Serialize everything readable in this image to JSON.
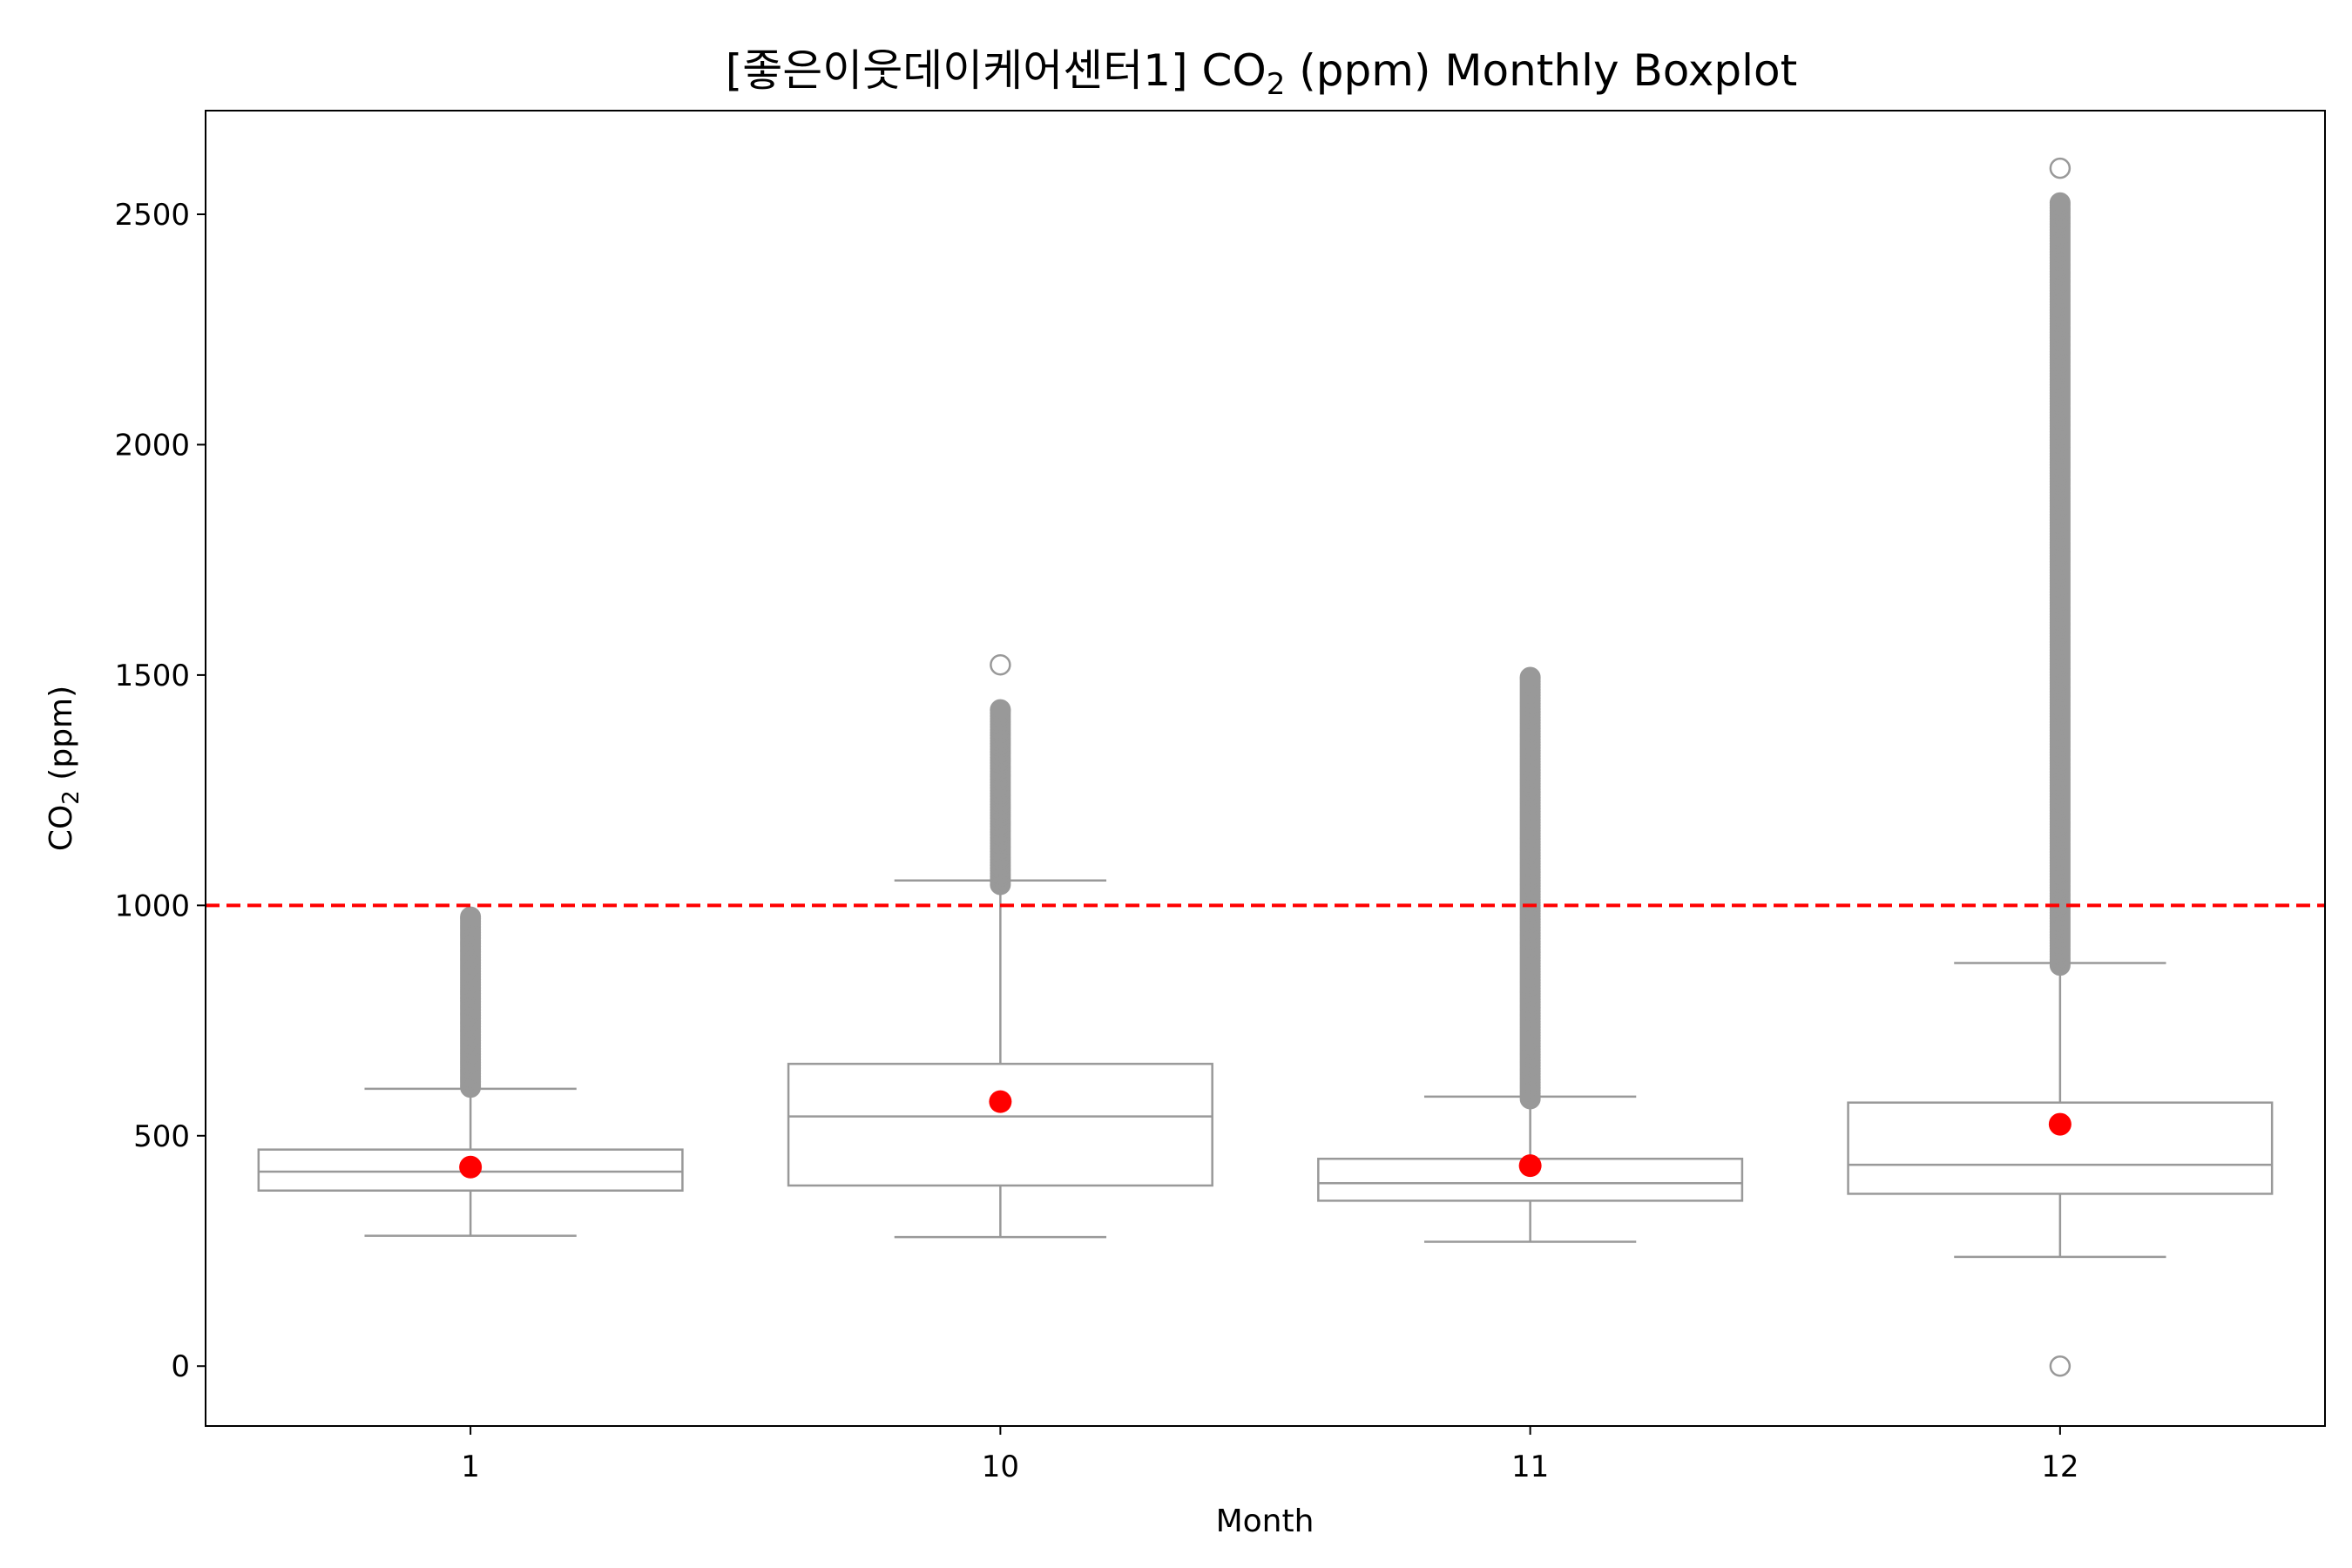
{
  "chart_data": {
    "type": "box",
    "title": "[좋은이웃데이케어센터1] CO",
    "title_subscript": "2",
    "title_suffix": " (ppm) Monthly Boxplot",
    "xlabel": "Month",
    "ylabel": "CO",
    "ylabel_subscript": "2",
    "ylabel_suffix": " (ppm)",
    "ylim": [
      -130,
      2725
    ],
    "yticks": [
      0,
      500,
      1000,
      1500,
      2000,
      2500
    ],
    "categories": [
      "1",
      "10",
      "11",
      "12"
    ],
    "threshold": {
      "value": 1000,
      "color": "#ff0000",
      "style": "dashed"
    },
    "box_color": "#999999",
    "mean_color": "#ff0000",
    "boxes": [
      {
        "category": "1",
        "whislo": 283,
        "q1": 381,
        "median": 422,
        "q3": 470,
        "whishi": 602,
        "mean": 432,
        "outlier_range": [
          605,
          975
        ],
        "outliers": []
      },
      {
        "category": "10",
        "whislo": 280,
        "q1": 392,
        "median": 542,
        "q3": 656,
        "whishi": 1054,
        "mean": 574,
        "outlier_range": [
          1045,
          1425
        ],
        "outliers": [
          1522
        ]
      },
      {
        "category": "11",
        "whislo": 270,
        "q1": 359,
        "median": 397,
        "q3": 450,
        "whishi": 585,
        "mean": 435,
        "outlier_range": [
          580,
          1495
        ],
        "outliers": []
      },
      {
        "category": "12",
        "whislo": 237,
        "q1": 374,
        "median": 437,
        "q3": 572,
        "whishi": 875,
        "mean": 525,
        "outlier_range": [
          870,
          2525
        ],
        "outliers": [
          0,
          2600
        ]
      }
    ]
  }
}
